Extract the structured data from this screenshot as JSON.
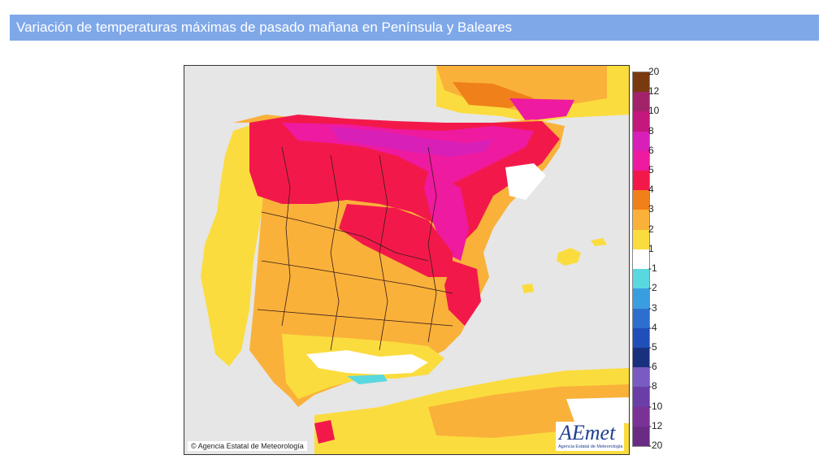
{
  "header": {
    "title": "Variación de temperaturas máximas de pasado mañana en Península y Baleares"
  },
  "map": {
    "copyright": "© Agencia Estatal de Meteorología",
    "logo_text": "AEmet",
    "logo_subtext": "Agencia Estatal de Meteorología"
  },
  "legend": {
    "items": [
      {
        "label": "20",
        "color": "#7a3a10"
      },
      {
        "label": "12",
        "color": "#a3236b"
      },
      {
        "label": "10",
        "color": "#c4187f"
      },
      {
        "label": "8",
        "color": "#d820b8"
      },
      {
        "label": "6",
        "color": "#ee1aa0"
      },
      {
        "label": "5",
        "color": "#f2194a"
      },
      {
        "label": "4",
        "color": "#f08019"
      },
      {
        "label": "3",
        "color": "#f9b13a"
      },
      {
        "label": "2",
        "color": "#fbdc3e"
      },
      {
        "label": "1",
        "color": "#ffffff"
      },
      {
        "label": "-1",
        "color": "#5ad8e0"
      },
      {
        "label": "-2",
        "color": "#3a9de0"
      },
      {
        "label": "-3",
        "color": "#2d6fd0"
      },
      {
        "label": "-4",
        "color": "#1f4fb8"
      },
      {
        "label": "-5",
        "color": "#19307f"
      },
      {
        "label": "-6",
        "color": "#7a5bc2"
      },
      {
        "label": "-8",
        "color": "#6a3ea6"
      },
      {
        "label": "-10",
        "color": "#7a3296"
      },
      {
        "label": "-12",
        "color": "#6a2b85"
      },
      {
        "label": "-20",
        "color": ""
      }
    ]
  }
}
